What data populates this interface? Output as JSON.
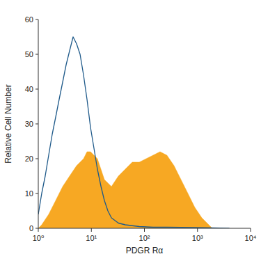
{
  "chart_data": {
    "type": "area",
    "x_label": "PDGR Rα",
    "y_label": "Relative Cell Number",
    "log": "x",
    "xlim": [
      1,
      10000
    ],
    "xticks": [
      {
        "value": 1,
        "label": "10⁰"
      },
      {
        "value": 10,
        "label": "10¹"
      },
      {
        "value": 100,
        "label": "10²"
      },
      {
        "value": 1000,
        "label": "10³"
      },
      {
        "value": 10000,
        "label": "10⁴"
      }
    ],
    "ylim": [
      0,
      60
    ],
    "yticks": [
      0,
      10,
      20,
      30,
      40,
      50,
      60
    ],
    "series": [
      {
        "type": "line",
        "color": "#1f5a8a",
        "x": [
          1,
          1.16,
          1.35,
          1.57,
          1.83,
          2.13,
          2.47,
          2.88,
          3.35,
          3.89,
          4.53,
          5.27,
          6.13,
          7.13,
          8.29,
          9.64,
          11.2,
          13,
          15.2,
          17.6,
          20.5,
          23.9,
          32.3,
          43.6,
          80,
          146,
          265,
          890,
          4000
        ],
        "values": [
          4,
          10,
          15,
          21,
          27,
          32,
          37,
          42,
          47,
          51,
          55,
          53,
          50,
          44,
          37,
          29,
          23,
          17,
          12,
          8,
          5,
          3,
          1.5,
          1,
          0.5,
          0.3,
          0.3,
          0.2,
          0
        ]
      },
      {
        "type": "area",
        "color": "#f7a823",
        "x": [
          1,
          1.16,
          1.57,
          2.13,
          2.88,
          3.89,
          5.27,
          7.13,
          8.29,
          9.64,
          13,
          17.6,
          23.9,
          32.3,
          43.6,
          58.9,
          80,
          108,
          146,
          197,
          265,
          361,
          488,
          660,
          890,
          1208,
          1633,
          1900
        ],
        "values": [
          0,
          1,
          4,
          8,
          12,
          15,
          18,
          20,
          22,
          22,
          20,
          14,
          12,
          15,
          17,
          19,
          19,
          20,
          21,
          22,
          21,
          18,
          14,
          10,
          6,
          3,
          1,
          0
        ]
      }
    ]
  }
}
